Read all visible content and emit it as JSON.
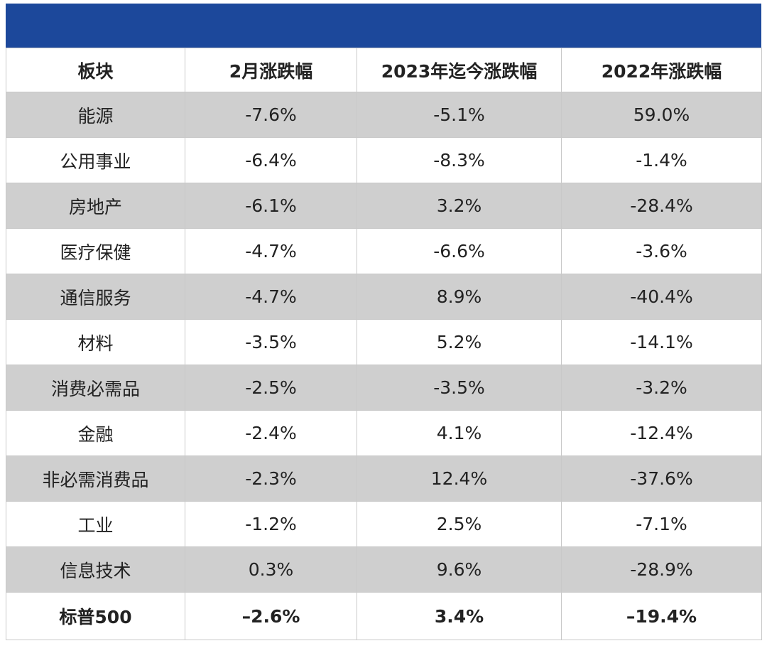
{
  "header": {
    "columns": [
      "板块",
      "2月涨跌幅",
      "2023年迄今涨跌幅",
      "2022年涨跌幅"
    ]
  },
  "rows": [
    {
      "sector": "能源",
      "feb": "-7.6%",
      "ytd2023": "-5.1%",
      "y2022": "59.0%"
    },
    {
      "sector": "公用事业",
      "feb": "-6.4%",
      "ytd2023": "-8.3%",
      "y2022": "-1.4%"
    },
    {
      "sector": "房地产",
      "feb": "-6.1%",
      "ytd2023": "3.2%",
      "y2022": "-28.4%"
    },
    {
      "sector": "医疗保健",
      "feb": "-4.7%",
      "ytd2023": "-6.6%",
      "y2022": "-3.6%"
    },
    {
      "sector": "通信服务",
      "feb": "-4.7%",
      "ytd2023": "8.9%",
      "y2022": "-40.4%"
    },
    {
      "sector": "材料",
      "feb": "-3.5%",
      "ytd2023": "5.2%",
      "y2022": "-14.1%"
    },
    {
      "sector": "消费必需品",
      "feb": "-2.5%",
      "ytd2023": "-3.5%",
      "y2022": "-3.2%"
    },
    {
      "sector": "金融",
      "feb": "-2.4%",
      "ytd2023": "4.1%",
      "y2022": "-12.4%"
    },
    {
      "sector": "非必需消费品",
      "feb": "-2.3%",
      "ytd2023": "12.4%",
      "y2022": "-37.6%"
    },
    {
      "sector": "工业",
      "feb": "-1.2%",
      "ytd2023": "2.5%",
      "y2022": "-7.1%"
    },
    {
      "sector": "信息技术",
      "feb": "0.3%",
      "ytd2023": "9.6%",
      "y2022": "-28.9%"
    }
  ],
  "total": {
    "sector": "标普500",
    "feb": "–2.6%",
    "ytd2023": "3.4%",
    "y2022": "–19.4%"
  },
  "colors": {
    "banner": "#1c489b",
    "shaded_row": "#cfcfcf",
    "grid": "#c9c9c9"
  }
}
